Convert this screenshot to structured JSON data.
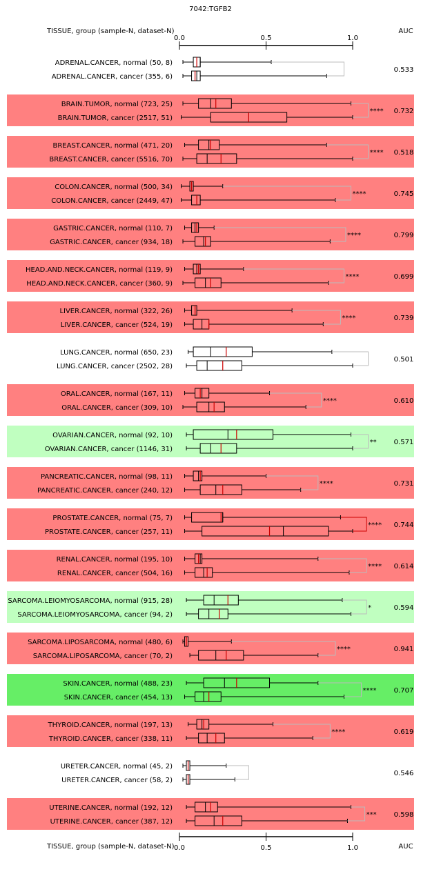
{
  "chart_data": {
    "type": "boxplot",
    "title": "7042:TGFB2",
    "header_left": "TISSUE, group (sample-N, dataset-N)",
    "header_right": "AUC",
    "xlim": [
      0,
      1
    ],
    "ticks": [
      0.0,
      0.5,
      1.0
    ],
    "tick_labels": [
      "0.0",
      "0.5",
      "1.0"
    ],
    "colors": {
      "red_bg": "#ff8080",
      "light_green_bg": "#c0ffc0",
      "green_bg": "#66ee66",
      "median_line": "#cc0000",
      "bracket_gray": "#bbbbbb",
      "bracket_red": "#cc0000"
    },
    "groups": [
      {
        "tissue": "ADRENAL.CANCER",
        "bg": "none",
        "significance": "",
        "auc": "0.533",
        "normal": {
          "label": "ADRENAL.CANCER, normal (50, 8)",
          "min": 0.02,
          "q1": 0.08,
          "median": 0.12,
          "mean": 0.1,
          "q3": 0.12,
          "max": 0.53,
          "outlier_max": 0.95
        },
        "cancer": {
          "label": "ADRENAL.CANCER, cancer (355, 6)",
          "min": 0.02,
          "q1": 0.07,
          "median": 0.1,
          "mean": 0.09,
          "q3": 0.12,
          "max": 0.85,
          "outlier_max": 0.95
        }
      },
      {
        "tissue": "BRAIN.TUMOR",
        "bg": "red",
        "significance": "****",
        "auc": "0.732",
        "normal": {
          "label": "BRAIN.TUMOR, normal (723, 25)",
          "min": 0.02,
          "q1": 0.11,
          "median": 0.18,
          "mean": 0.21,
          "q3": 0.3,
          "max": 0.99,
          "outlier_max": 1.09
        },
        "cancer": {
          "label": "BRAIN.TUMOR, cancer (2517, 51)",
          "min": 0.01,
          "q1": 0.18,
          "median": 0.4,
          "mean": 0.4,
          "q3": 0.62,
          "max": 1.0,
          "outlier_max": 1.09
        }
      },
      {
        "tissue": "BREAST.CANCER",
        "bg": "red",
        "significance": "****",
        "auc": "0.518",
        "normal": {
          "label": "BREAST.CANCER, normal (471, 20)",
          "min": 0.03,
          "q1": 0.11,
          "median": 0.17,
          "mean": 0.18,
          "q3": 0.23,
          "max": 0.85,
          "outlier_max": 1.09
        },
        "cancer": {
          "label": "BREAST.CANCER, cancer (5516, 70)",
          "min": 0.02,
          "q1": 0.1,
          "median": 0.16,
          "mean": 0.24,
          "q3": 0.33,
          "max": 1.0,
          "outlier_max": 1.09
        }
      },
      {
        "tissue": "COLON.CANCER",
        "bg": "red",
        "significance": "****",
        "auc": "0.745",
        "normal": {
          "label": "COLON.CANCER, normal (500, 34)",
          "min": 0.01,
          "q1": 0.06,
          "median": 0.07,
          "mean": 0.07,
          "q3": 0.08,
          "max": 0.25,
          "outlier_max": 0.99
        },
        "cancer": {
          "label": "COLON.CANCER, cancer (2449, 47)",
          "min": 0.01,
          "q1": 0.07,
          "median": 0.1,
          "mean": 0.1,
          "q3": 0.12,
          "max": 0.9,
          "outlier_max": 0.99
        }
      },
      {
        "tissue": "GASTRIC.CANCER",
        "bg": "red",
        "significance": "****",
        "auc": "0.799",
        "normal": {
          "label": "GASTRIC.CANCER, normal (110, 7)",
          "min": 0.03,
          "q1": 0.07,
          "median": 0.09,
          "mean": 0.1,
          "q3": 0.11,
          "max": 0.2,
          "outlier_max": 0.96
        },
        "cancer": {
          "label": "GASTRIC.CANCER, cancer (934, 18)",
          "min": 0.02,
          "q1": 0.09,
          "median": 0.14,
          "mean": 0.15,
          "q3": 0.18,
          "max": 0.87,
          "outlier_max": 0.96
        }
      },
      {
        "tissue": "HEAD.AND.NECK.CANCER",
        "bg": "red",
        "significance": "****",
        "auc": "0.699",
        "normal": {
          "label": "HEAD.AND.NECK.CANCER, normal (119, 9)",
          "min": 0.03,
          "q1": 0.08,
          "median": 0.1,
          "mean": 0.11,
          "q3": 0.12,
          "max": 0.37,
          "outlier_max": 0.95
        },
        "cancer": {
          "label": "HEAD.AND.NECK.CANCER, cancer (360, 9)",
          "min": 0.02,
          "q1": 0.09,
          "median": 0.15,
          "mean": 0.18,
          "q3": 0.24,
          "max": 0.86,
          "outlier_max": 0.95
        }
      },
      {
        "tissue": "LIVER.CANCER",
        "bg": "red",
        "significance": "****",
        "auc": "0.739",
        "normal": {
          "label": "LIVER.CANCER, normal (322, 26)",
          "min": 0.03,
          "q1": 0.07,
          "median": 0.09,
          "mean": 0.09,
          "q3": 0.1,
          "max": 0.65,
          "outlier_max": 0.93
        },
        "cancer": {
          "label": "LIVER.CANCER, cancer (524, 19)",
          "min": 0.03,
          "q1": 0.08,
          "median": 0.13,
          "mean": 0.17,
          "q3": 0.17,
          "max": 0.83,
          "outlier_max": 0.93
        }
      },
      {
        "tissue": "LUNG.CANCER",
        "bg": "none",
        "significance": "",
        "auc": "0.501",
        "normal": {
          "label": "LUNG.CANCER, normal (650, 23)",
          "min": 0.05,
          "q1": 0.08,
          "median": 0.18,
          "mean": 0.27,
          "q3": 0.42,
          "max": 0.88,
          "outlier_max": 1.09
        },
        "cancer": {
          "label": "LUNG.CANCER, cancer (2502, 28)",
          "min": 0.04,
          "q1": 0.1,
          "median": 0.16,
          "mean": 0.25,
          "q3": 0.36,
          "max": 1.0,
          "outlier_max": 1.09
        }
      },
      {
        "tissue": "ORAL.CANCER",
        "bg": "red",
        "significance": "****",
        "auc": "0.610",
        "normal": {
          "label": "ORAL.CANCER, normal (167, 11)",
          "min": 0.03,
          "q1": 0.09,
          "median": 0.13,
          "mean": 0.12,
          "q3": 0.17,
          "max": 0.52,
          "outlier_max": 0.82
        },
        "cancer": {
          "label": "ORAL.CANCER, cancer (309, 10)",
          "min": 0.02,
          "q1": 0.1,
          "median": 0.17,
          "mean": 0.2,
          "q3": 0.26,
          "max": 0.73,
          "outlier_max": 0.82
        }
      },
      {
        "tissue": "OVARIAN.CANCER",
        "bg": "lightgreen",
        "significance": "**",
        "auc": "0.571",
        "normal": {
          "label": "OVARIAN.CANCER, normal (92, 10)",
          "min": 0.04,
          "q1": 0.08,
          "median": 0.28,
          "mean": 0.33,
          "q3": 0.54,
          "max": 0.99,
          "outlier_max": 1.09
        },
        "cancer": {
          "label": "OVARIAN.CANCER, cancer (1146, 31)",
          "min": 0.04,
          "q1": 0.12,
          "median": 0.18,
          "mean": 0.24,
          "q3": 0.33,
          "max": 1.0,
          "outlier_max": 1.09
        }
      },
      {
        "tissue": "PANCREATIC.CANCER",
        "bg": "red",
        "significance": "****",
        "auc": "0.731",
        "normal": {
          "label": "PANCREATIC.CANCER, normal (98, 11)",
          "min": 0.03,
          "q1": 0.08,
          "median": 0.11,
          "mean": 0.12,
          "q3": 0.13,
          "max": 0.5,
          "outlier_max": 0.8
        },
        "cancer": {
          "label": "PANCREATIC.CANCER, cancer (240, 12)",
          "min": 0.03,
          "q1": 0.12,
          "median": 0.21,
          "mean": 0.25,
          "q3": 0.36,
          "max": 0.7,
          "outlier_max": 0.8
        }
      },
      {
        "tissue": "PROSTATE.CANCER",
        "bg": "red",
        "significance": "****",
        "auc": "0.744",
        "bracket_color": "red",
        "normal": {
          "label": "PROSTATE.CANCER, normal (75, 7)",
          "min": 0.03,
          "q1": 0.07,
          "median": 0.25,
          "mean": 0.24,
          "q3": 0.25,
          "max": 0.93,
          "outlier_max": 1.08
        },
        "cancer": {
          "label": "PROSTATE.CANCER, cancer (257, 11)",
          "min": 0.03,
          "q1": 0.13,
          "median": 0.6,
          "mean": 0.52,
          "q3": 0.86,
          "max": 1.0,
          "outlier_max": 1.08
        }
      },
      {
        "tissue": "RENAL.CANCER",
        "bg": "red",
        "significance": "****",
        "auc": "0.614",
        "normal": {
          "label": "RENAL.CANCER, normal (195, 10)",
          "min": 0.03,
          "q1": 0.09,
          "median": 0.12,
          "mean": 0.11,
          "q3": 0.13,
          "max": 0.8,
          "outlier_max": 1.08
        },
        "cancer": {
          "label": "RENAL.CANCER, cancer (504, 16)",
          "min": 0.03,
          "q1": 0.09,
          "median": 0.14,
          "mean": 0.16,
          "q3": 0.19,
          "max": 0.98,
          "outlier_max": 1.08
        }
      },
      {
        "tissue": "SARCOMA.LEIOMYOSARCOMA",
        "bg": "lightgreen",
        "significance": "*",
        "auc": "0.594",
        "normal": {
          "label": "SARCOMA.LEIOMYOSARCOMA, normal (915, 28)",
          "min": 0.04,
          "q1": 0.14,
          "median": 0.2,
          "mean": 0.28,
          "q3": 0.34,
          "max": 0.94,
          "outlier_max": 1.08
        },
        "cancer": {
          "label": "SARCOMA.LEIOMYOSARCOMA, cancer (94, 2)",
          "min": 0.04,
          "q1": 0.11,
          "median": 0.17,
          "mean": 0.23,
          "q3": 0.28,
          "max": 0.99,
          "outlier_max": 1.08
        }
      },
      {
        "tissue": "SARCOMA.LIPOSARCOMA",
        "bg": "red",
        "significance": "****",
        "auc": "0.941",
        "normal": {
          "label": "SARCOMA.LIPOSARCOMA, normal (480, 6)",
          "min": 0.02,
          "q1": 0.03,
          "median": 0.04,
          "mean": 0.04,
          "q3": 0.05,
          "max": 0.3,
          "outlier_max": 0.9
        },
        "cancer": {
          "label": "SARCOMA.LIPOSARCOMA, cancer (70, 2)",
          "min": 0.06,
          "q1": 0.11,
          "median": 0.21,
          "mean": 0.27,
          "q3": 0.37,
          "max": 0.8,
          "outlier_max": 0.9
        }
      },
      {
        "tissue": "SKIN.CANCER",
        "bg": "green",
        "significance": "****",
        "auc": "0.707",
        "normal": {
          "label": "SKIN.CANCER, normal (488, 23)",
          "min": 0.04,
          "q1": 0.14,
          "median": 0.26,
          "mean": 0.33,
          "q3": 0.52,
          "max": 0.8,
          "outlier_max": 1.05
        },
        "cancer": {
          "label": "SKIN.CANCER, cancer (454, 13)",
          "min": 0.03,
          "q1": 0.09,
          "median": 0.14,
          "mean": 0.17,
          "q3": 0.24,
          "max": 0.95,
          "outlier_max": 1.05
        }
      },
      {
        "tissue": "THYROID.CANCER",
        "bg": "red",
        "significance": "****",
        "auc": "0.619",
        "normal": {
          "label": "THYROID.CANCER, normal (197, 13)",
          "min": 0.05,
          "q1": 0.1,
          "median": 0.13,
          "mean": 0.14,
          "q3": 0.17,
          "max": 0.54,
          "outlier_max": 0.87
        },
        "cancer": {
          "label": "THYROID.CANCER, cancer (338, 11)",
          "min": 0.04,
          "q1": 0.11,
          "median": 0.16,
          "mean": 0.21,
          "q3": 0.26,
          "max": 0.77,
          "outlier_max": 0.87
        }
      },
      {
        "tissue": "URETER.CANCER",
        "bg": "none",
        "significance": "",
        "auc": "0.546",
        "normal": {
          "label": "URETER.CANCER, normal (45, 2)",
          "min": 0.02,
          "q1": 0.04,
          "median": 0.05,
          "mean": 0.05,
          "q3": 0.06,
          "max": 0.27,
          "outlier_max": 0.4
        },
        "cancer": {
          "label": "URETER.CANCER, cancer (58, 2)",
          "min": 0.02,
          "q1": 0.04,
          "median": 0.05,
          "mean": 0.05,
          "q3": 0.06,
          "max": 0.32,
          "outlier_max": 0.4
        }
      },
      {
        "tissue": "UTERINE.CANCER",
        "bg": "red",
        "significance": "***",
        "auc": "0.598",
        "normal": {
          "label": "UTERINE.CANCER, normal (192, 12)",
          "min": 0.04,
          "q1": 0.09,
          "median": 0.15,
          "mean": 0.18,
          "q3": 0.22,
          "max": 0.99,
          "outlier_max": 1.07
        },
        "cancer": {
          "label": "UTERINE.CANCER, cancer (387, 12)",
          "min": 0.04,
          "q1": 0.09,
          "median": 0.2,
          "mean": 0.25,
          "q3": 0.36,
          "max": 0.97,
          "outlier_max": 1.07
        }
      }
    ]
  }
}
